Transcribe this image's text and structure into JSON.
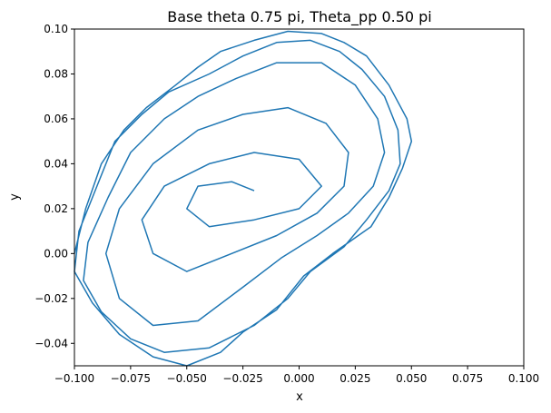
{
  "chart_data": {
    "type": "line",
    "title": "Base theta 0.75 pi, Theta_pp 0.50 pi",
    "xlabel": "x",
    "ylabel": "y",
    "xlim": [
      -0.1,
      0.1
    ],
    "ylim": [
      -0.05,
      0.1
    ],
    "x_ticks": [
      -0.1,
      -0.075,
      -0.05,
      -0.025,
      0.0,
      0.025,
      0.05,
      0.075,
      0.1
    ],
    "x_tick_labels": [
      "−0.100",
      "−0.075",
      "−0.050",
      "−0.025",
      "0.000",
      "0.025",
      "0.050",
      "0.075",
      "0.100"
    ],
    "y_ticks": [
      -0.04,
      -0.02,
      0.0,
      0.02,
      0.04,
      0.06,
      0.08,
      0.1
    ],
    "y_tick_labels": [
      "−0.04",
      "−0.02",
      "0.00",
      "0.02",
      "0.04",
      "0.06",
      "0.08",
      "0.10"
    ],
    "grid": false,
    "legend": "none",
    "series": [
      {
        "color": "#1f77b4",
        "points": [
          [
            -0.1,
            0.0
          ],
          [
            -0.095,
            0.02
          ],
          [
            -0.088,
            0.04
          ],
          [
            -0.078,
            0.055
          ],
          [
            -0.068,
            0.065
          ],
          [
            -0.055,
            0.075
          ],
          [
            -0.045,
            0.083
          ],
          [
            -0.035,
            0.09
          ],
          [
            -0.02,
            0.095
          ],
          [
            -0.005,
            0.099
          ],
          [
            0.01,
            0.098
          ],
          [
            0.02,
            0.094
          ],
          [
            0.03,
            0.088
          ],
          [
            0.04,
            0.075
          ],
          [
            0.048,
            0.06
          ],
          [
            0.05,
            0.05
          ],
          [
            0.046,
            0.038
          ],
          [
            0.04,
            0.025
          ],
          [
            0.032,
            0.012
          ],
          [
            0.015,
            0.0
          ],
          [
            0.002,
            -0.01
          ],
          [
            -0.01,
            -0.025
          ],
          [
            -0.025,
            -0.035
          ],
          [
            -0.035,
            -0.044
          ],
          [
            -0.05,
            -0.05
          ],
          [
            -0.065,
            -0.046
          ],
          [
            -0.08,
            -0.036
          ],
          [
            -0.092,
            -0.022
          ],
          [
            -0.1,
            -0.008
          ],
          [
            -0.098,
            0.01
          ],
          [
            -0.09,
            0.03
          ],
          [
            -0.082,
            0.05
          ],
          [
            -0.07,
            0.062
          ],
          [
            -0.058,
            0.072
          ],
          [
            -0.04,
            0.08
          ],
          [
            -0.025,
            0.088
          ],
          [
            -0.01,
            0.094
          ],
          [
            0.005,
            0.095
          ],
          [
            0.018,
            0.09
          ],
          [
            0.028,
            0.082
          ],
          [
            0.038,
            0.07
          ],
          [
            0.044,
            0.055
          ],
          [
            0.045,
            0.04
          ],
          [
            0.04,
            0.028
          ],
          [
            0.03,
            0.015
          ],
          [
            0.02,
            0.003
          ],
          [
            0.005,
            -0.008
          ],
          [
            -0.005,
            -0.02
          ],
          [
            -0.02,
            -0.032
          ],
          [
            -0.04,
            -0.042
          ],
          [
            -0.06,
            -0.044
          ],
          [
            -0.075,
            -0.038
          ],
          [
            -0.088,
            -0.026
          ],
          [
            -0.096,
            -0.012
          ],
          [
            -0.094,
            0.005
          ],
          [
            -0.085,
            0.025
          ],
          [
            -0.075,
            0.045
          ],
          [
            -0.06,
            0.06
          ],
          [
            -0.045,
            0.07
          ],
          [
            -0.028,
            0.078
          ],
          [
            -0.01,
            0.085
          ],
          [
            0.01,
            0.085
          ],
          [
            0.025,
            0.075
          ],
          [
            0.035,
            0.06
          ],
          [
            0.038,
            0.045
          ],
          [
            0.033,
            0.03
          ],
          [
            0.022,
            0.018
          ],
          [
            0.008,
            0.008
          ],
          [
            -0.008,
            -0.002
          ],
          [
            -0.025,
            -0.015
          ],
          [
            -0.045,
            -0.03
          ],
          [
            -0.065,
            -0.032
          ],
          [
            -0.08,
            -0.02
          ],
          [
            -0.086,
            0.0
          ],
          [
            -0.08,
            0.02
          ],
          [
            -0.065,
            0.04
          ],
          [
            -0.045,
            0.055
          ],
          [
            -0.025,
            0.062
          ],
          [
            -0.005,
            0.065
          ],
          [
            0.012,
            0.058
          ],
          [
            0.022,
            0.045
          ],
          [
            0.02,
            0.03
          ],
          [
            0.008,
            0.018
          ],
          [
            -0.01,
            0.008
          ],
          [
            -0.03,
            0.0
          ],
          [
            -0.05,
            -0.008
          ],
          [
            -0.065,
            0.0
          ],
          [
            -0.07,
            0.015
          ],
          [
            -0.06,
            0.03
          ],
          [
            -0.04,
            0.04
          ],
          [
            -0.02,
            0.045
          ],
          [
            0.0,
            0.042
          ],
          [
            0.01,
            0.03
          ],
          [
            0.0,
            0.02
          ],
          [
            -0.02,
            0.015
          ],
          [
            -0.04,
            0.012
          ],
          [
            -0.05,
            0.02
          ],
          [
            -0.045,
            0.03
          ],
          [
            -0.03,
            0.032
          ],
          [
            -0.02,
            0.028
          ]
        ]
      }
    ]
  }
}
